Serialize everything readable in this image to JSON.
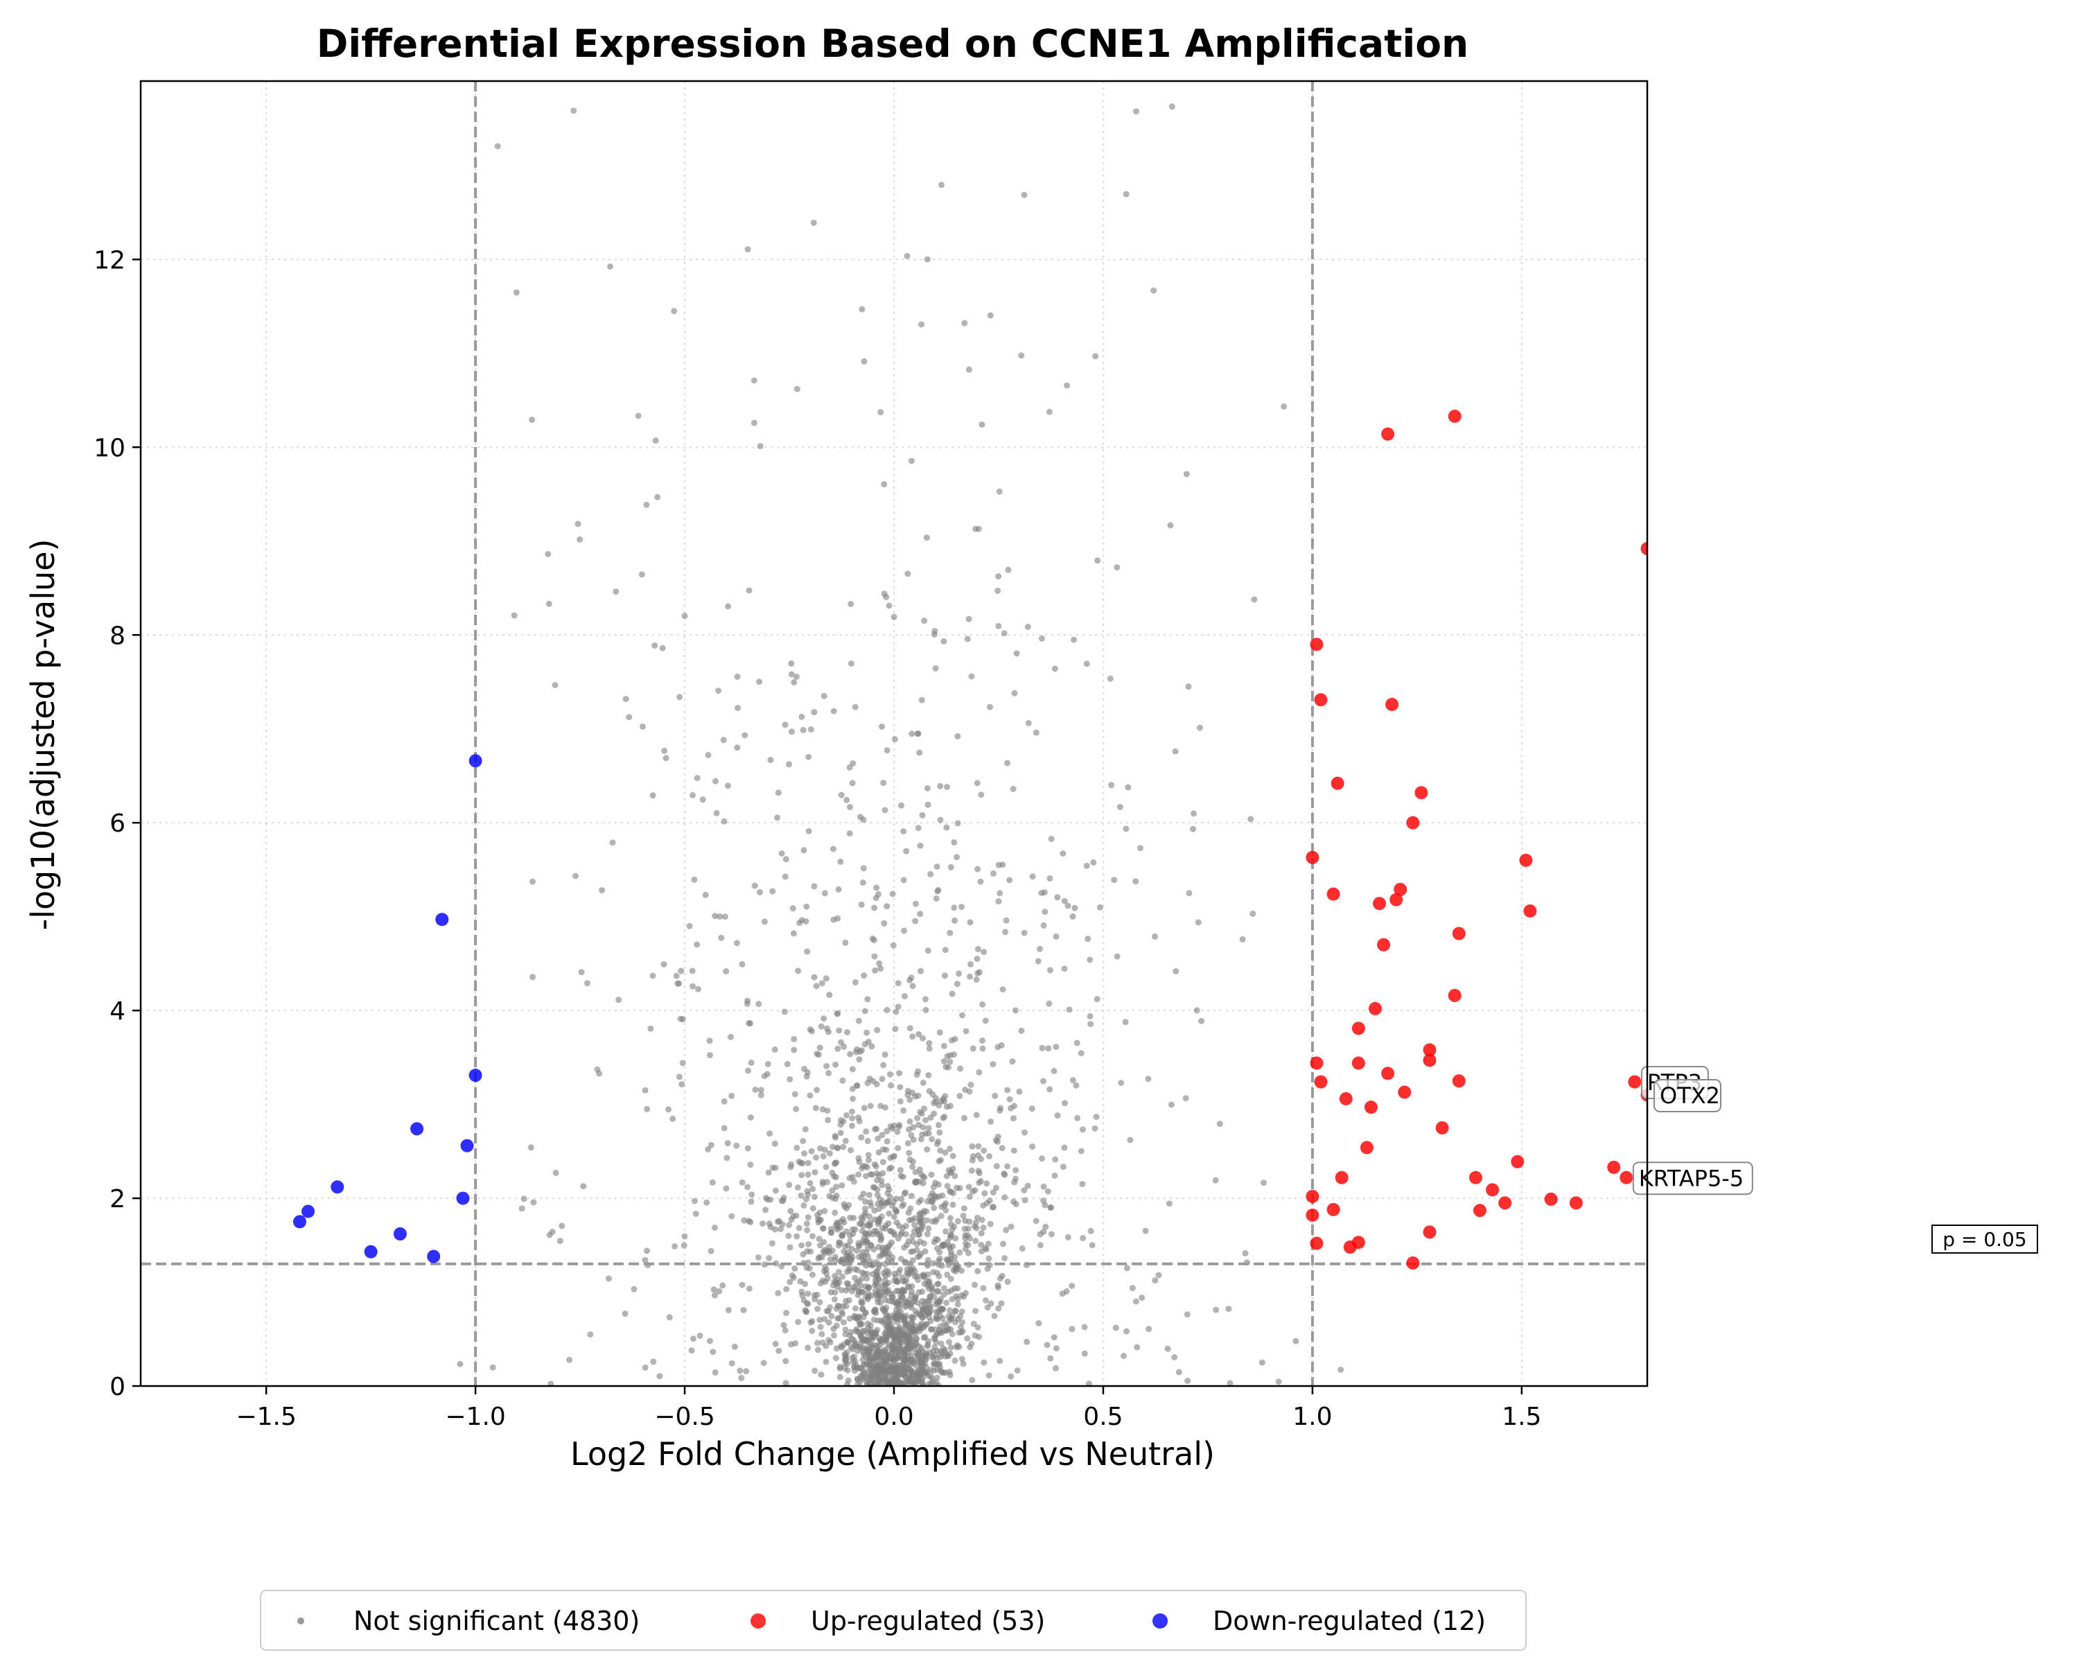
{
  "chart_data": {
    "type": "scatter",
    "title": "Differential Expression Based on CCNE1 Amplification",
    "xlabel": "Log2 Fold Change (Amplified vs Neutral)",
    "ylabel": "-log10(adjusted p-value)",
    "xlim": [
      -1.8,
      1.8
    ],
    "ylim": [
      0,
      13.9
    ],
    "xticks": [
      "−1.5",
      "−1.0",
      "−0.5",
      "0.0",
      "0.5",
      "1.0",
      "1.5"
    ],
    "xtick_values": [
      -1.5,
      -1.0,
      -0.5,
      0.0,
      0.5,
      1.0,
      1.5
    ],
    "yticks": [
      "0",
      "2",
      "4",
      "6",
      "8",
      "10",
      "12"
    ],
    "ytick_values": [
      0,
      2,
      4,
      6,
      8,
      10,
      12
    ],
    "grid": true,
    "legend_position": "bottom-center",
    "thresholds": {
      "fold_change": [
        -1.0,
        1.0
      ],
      "neg_log10_p": 1.301,
      "p_label": "p = 0.05"
    },
    "colors": {
      "not_significant": "#808080",
      "up": "#ff0000",
      "down": "#0000ff",
      "threshold_line": "#999999"
    },
    "series": [
      {
        "name": "Not significant (4830)",
        "key": "not_significant",
        "count": 4830,
        "note_points": "representative sample of the 4830 points",
        "points": []
      },
      {
        "name": "Up-regulated (53)",
        "key": "up",
        "count": 53,
        "points": [
          [
            1.34,
            10.33
          ],
          [
            1.18,
            10.14
          ],
          [
            1.8,
            8.92
          ],
          [
            1.01,
            7.9
          ],
          [
            1.02,
            7.31
          ],
          [
            1.19,
            7.26
          ],
          [
            1.06,
            6.42
          ],
          [
            1.26,
            6.32
          ],
          [
            1.24,
            6.0
          ],
          [
            1.0,
            5.63
          ],
          [
            1.51,
            5.6
          ],
          [
            1.05,
            5.24
          ],
          [
            1.21,
            5.29
          ],
          [
            1.2,
            5.18
          ],
          [
            1.16,
            5.14
          ],
          [
            1.52,
            5.06
          ],
          [
            1.35,
            4.82
          ],
          [
            1.17,
            4.7
          ],
          [
            1.34,
            4.16
          ],
          [
            1.15,
            4.02
          ],
          [
            1.11,
            3.81
          ],
          [
            1.28,
            3.58
          ],
          [
            1.28,
            3.47
          ],
          [
            1.01,
            3.44
          ],
          [
            1.11,
            3.44
          ],
          [
            1.18,
            3.33
          ],
          [
            1.35,
            3.25
          ],
          [
            1.02,
            3.24
          ],
          [
            1.77,
            3.24
          ],
          [
            1.22,
            3.13
          ],
          [
            1.8,
            3.1
          ],
          [
            1.08,
            3.06
          ],
          [
            1.14,
            2.97
          ],
          [
            1.13,
            2.54
          ],
          [
            1.49,
            2.39
          ],
          [
            1.72,
            2.33
          ],
          [
            1.07,
            2.22
          ],
          [
            1.39,
            2.22
          ],
          [
            1.75,
            2.22
          ],
          [
            1.43,
            2.09
          ],
          [
            1.0,
            2.02
          ],
          [
            1.57,
            1.99
          ],
          [
            1.63,
            1.95
          ],
          [
            1.05,
            1.88
          ],
          [
            1.0,
            1.82
          ],
          [
            1.28,
            1.64
          ],
          [
            1.11,
            1.53
          ],
          [
            1.01,
            1.52
          ],
          [
            1.09,
            1.48
          ],
          [
            1.24,
            1.31
          ],
          [
            1.46,
            1.95
          ],
          [
            1.31,
            2.75
          ],
          [
            1.4,
            1.87
          ]
        ]
      },
      {
        "name": "Down-regulated (12)",
        "key": "down",
        "count": 12,
        "points": [
          [
            -1.0,
            6.66
          ],
          [
            -1.08,
            4.97
          ],
          [
            -1.0,
            3.31
          ],
          [
            -1.14,
            2.74
          ],
          [
            -1.02,
            2.56
          ],
          [
            -1.03,
            2.0
          ],
          [
            -1.4,
            1.86
          ],
          [
            -1.42,
            1.75
          ],
          [
            -1.25,
            1.43
          ],
          [
            -1.18,
            1.62
          ],
          [
            -1.33,
            2.12
          ],
          [
            -1.1,
            1.38
          ]
        ]
      }
    ],
    "annotations": [
      {
        "text": "RTP3",
        "x": 1.77,
        "y": 3.24
      },
      {
        "text": "OTX2",
        "x": 1.8,
        "y": 3.1
      },
      {
        "text": "KRTAP5-5",
        "x": 1.75,
        "y": 2.22
      }
    ]
  }
}
